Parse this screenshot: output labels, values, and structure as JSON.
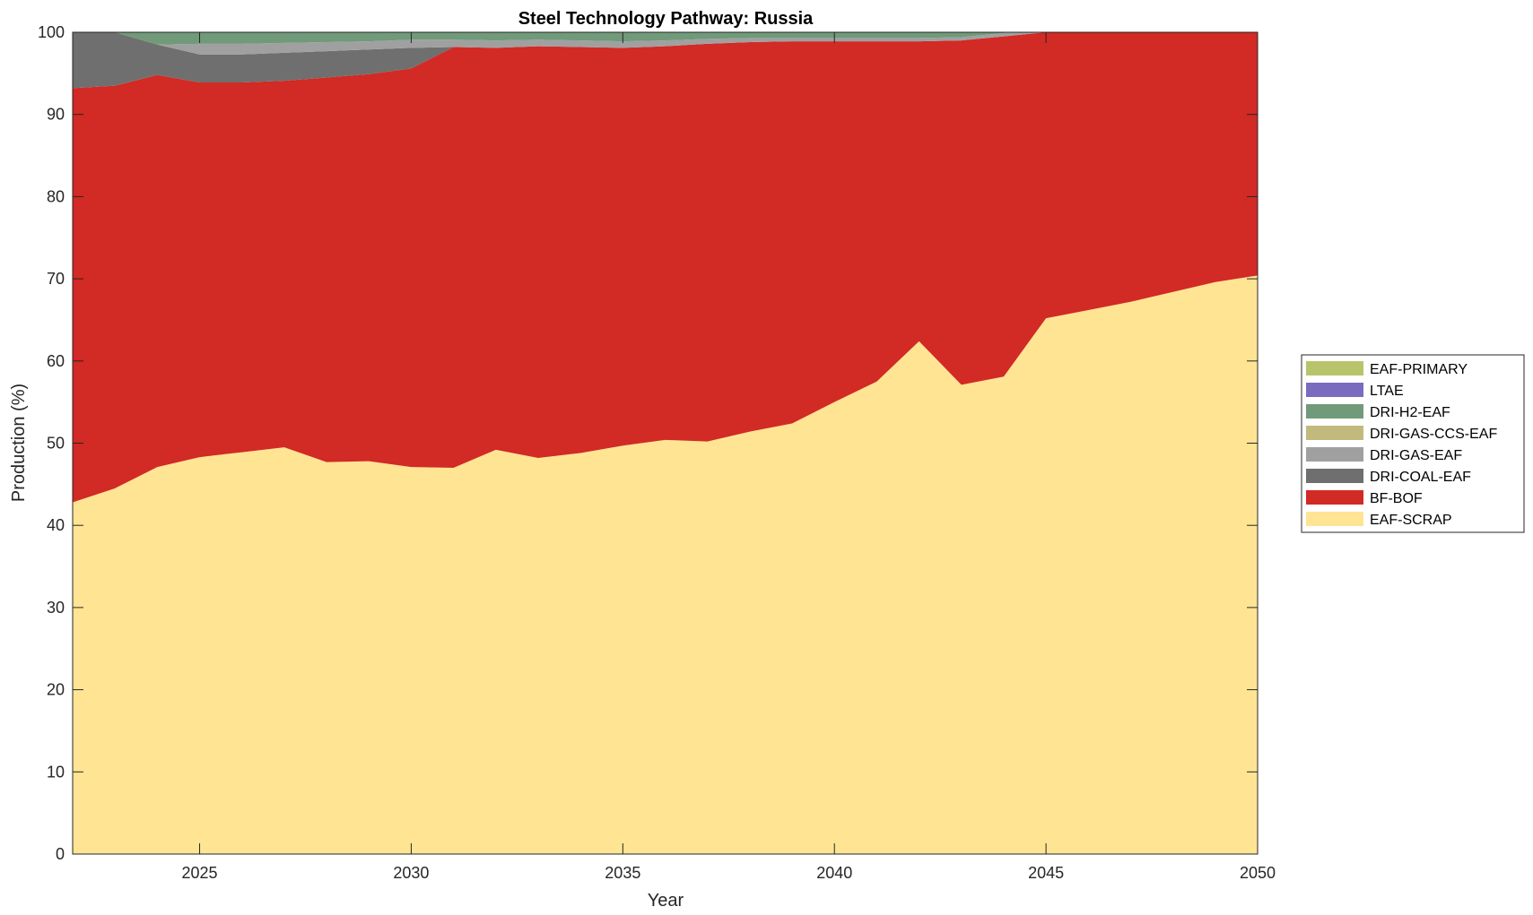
{
  "chart_data": {
    "type": "area",
    "stacked": true,
    "title": "Steel Technology Pathway: Russia",
    "xlabel": "Year",
    "ylabel": "Production (%)",
    "xlim": [
      2022,
      2050
    ],
    "ylim": [
      0,
      100
    ],
    "xticks": [
      2025,
      2030,
      2035,
      2040,
      2045,
      2050
    ],
    "yticks": [
      0,
      10,
      20,
      30,
      40,
      50,
      60,
      70,
      80,
      90,
      100
    ],
    "grid": false,
    "legend_position": "right",
    "x": [
      2022,
      2023,
      2024,
      2025,
      2026,
      2027,
      2028,
      2029,
      2030,
      2031,
      2032,
      2033,
      2034,
      2035,
      2036,
      2037,
      2038,
      2039,
      2040,
      2041,
      2042,
      2043,
      2044,
      2045,
      2046,
      2047,
      2048,
      2049,
      2050
    ],
    "series": [
      {
        "name": "EAF-SCRAP",
        "color": "#FFE494",
        "values": [
          42.8,
          44.5,
          47.1,
          48.3,
          48.9,
          49.5,
          47.7,
          47.8,
          47.1,
          47.0,
          49.2,
          48.2,
          48.8,
          49.7,
          50.4,
          50.2,
          51.4,
          52.4,
          55.0,
          57.5,
          62.4,
          57.1,
          58.1,
          65.2,
          66.2,
          67.2,
          68.4,
          69.6,
          70.4
        ]
      },
      {
        "name": "BF-BOF",
        "color": "#D22A24",
        "values": [
          50.4,
          49.0,
          47.7,
          45.6,
          45.0,
          44.6,
          46.8,
          47.1,
          48.5,
          51.2,
          48.9,
          50.1,
          49.4,
          48.4,
          47.9,
          48.4,
          47.4,
          46.5,
          43.9,
          41.4,
          36.5,
          41.9,
          41.4,
          34.8,
          33.8,
          32.8,
          31.6,
          30.4,
          29.6
        ]
      },
      {
        "name": "DRI-COAL-EAF",
        "color": "#6F6F6F",
        "values": [
          6.8,
          6.5,
          3.7,
          3.4,
          3.4,
          3.4,
          3.2,
          3.0,
          2.5,
          0,
          0,
          0,
          0,
          0,
          0,
          0,
          0,
          0,
          0,
          0,
          0,
          0,
          0,
          0,
          0,
          0,
          0,
          0,
          0
        ]
      },
      {
        "name": "DRI-GAS-EAF",
        "color": "#A0A0A0",
        "values": [
          0,
          0,
          0,
          1.3,
          1.3,
          1.2,
          1.1,
          1.0,
          1.0,
          0.9,
          0.9,
          0.8,
          0.8,
          0.8,
          0.7,
          0.6,
          0.5,
          0.4,
          0.4,
          0.4,
          0.4,
          0.4,
          0.4,
          0,
          0,
          0,
          0,
          0,
          0
        ]
      },
      {
        "name": "DRI-GAS-CCS-EAF",
        "color": "#C2BA7C",
        "values": [
          0,
          0,
          0,
          0,
          0,
          0,
          0,
          0,
          0,
          0,
          0,
          0,
          0,
          0,
          0,
          0,
          0,
          0,
          0,
          0,
          0,
          0,
          0,
          0,
          0,
          0,
          0,
          0,
          0
        ]
      },
      {
        "name": "DRI-H2-EAF",
        "color": "#709A7A",
        "values": [
          0,
          0,
          1.5,
          1.4,
          1.4,
          1.3,
          1.2,
          1.1,
          0.9,
          0.9,
          1.0,
          0.9,
          1.0,
          1.1,
          1.0,
          0.8,
          0.7,
          0.7,
          0.7,
          0.7,
          0.7,
          0.6,
          0.1,
          0,
          0,
          0,
          0,
          0,
          0
        ]
      },
      {
        "name": "LTAE",
        "color": "#7B6BC0",
        "values": [
          0,
          0,
          0,
          0,
          0,
          0,
          0,
          0,
          0,
          0,
          0,
          0,
          0,
          0,
          0,
          0,
          0,
          0,
          0,
          0,
          0,
          0,
          0,
          0,
          0,
          0,
          0,
          0,
          0
        ]
      },
      {
        "name": "EAF-PRIMARY",
        "color": "#B8C46A",
        "values": [
          0,
          0,
          0,
          0,
          0,
          0,
          0,
          0,
          0,
          0,
          0,
          0,
          0,
          0,
          0,
          0,
          0,
          0,
          0,
          0,
          0,
          0,
          0,
          0,
          0,
          0,
          0,
          0,
          0
        ]
      }
    ],
    "legend_order": [
      "EAF-PRIMARY",
      "LTAE",
      "DRI-H2-EAF",
      "DRI-GAS-CCS-EAF",
      "DRI-GAS-EAF",
      "DRI-COAL-EAF",
      "BF-BOF",
      "EAF-SCRAP"
    ]
  }
}
